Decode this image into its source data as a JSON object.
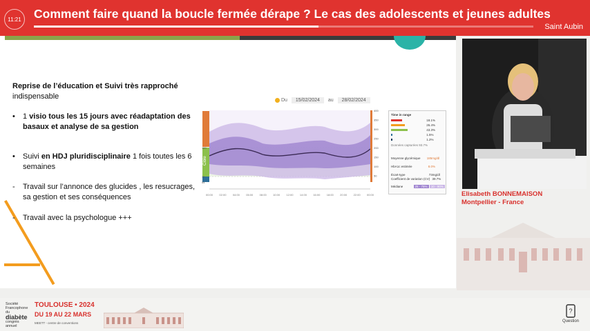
{
  "header": {
    "time": "11:21",
    "title": "Comment faire quand la boucle fermée dérape ? Le cas des adolescents et jeunes adultes",
    "location": "Saint Aubin",
    "progress_fraction": 0.57
  },
  "slide": {
    "heading_bold": "Reprise de l’éducation et Suivi très rapproché",
    "heading_rest": "indispensable",
    "bullet1_a": "1 ",
    "bullet1_bold": "visio tous les 15 jours avec réadaptation des basaux  et  analyse de sa gestion",
    "bullet2_a": "Suivi ",
    "bullet2_bold": "en HDJ pluridisciplinaire",
    "bullet2_rest": "  1 fois toutes les 6 semaines",
    "dash1": "Travail sur l’annonce des glucides , les resucrages, sa gestion et ses conséquences",
    "dash2": "Travail avec la psychologue +++",
    "chart": {
      "from_label": "Du",
      "from_date": "15/02/2024",
      "to_label": "au",
      "to_date": "28/02/2024",
      "target_label": "Cible",
      "left_ticks": [
        "180",
        "70",
        "54"
      ],
      "right_ticks": [
        "400",
        "350",
        "300",
        "250",
        "200",
        "150",
        "100",
        "50"
      ],
      "x_ticks": [
        "00:00",
        "02:00",
        "04:00",
        "06:00",
        "08:00",
        "10:00",
        "12:00",
        "14:00",
        "16:00",
        "18:00",
        "20:00",
        "22:00",
        "00:00"
      ],
      "stats": {
        "title": "Time in range",
        "pct": [
          "18.1%",
          "26.4%",
          "43.3%",
          "1.5%",
          "1.2%"
        ],
        "capture_label": "Données capturées",
        "capture_value": "93.7%",
        "mean_label": "Moyenne glycémique",
        "mean_value": "185mg/dl",
        "hba1c_label": "HbA1c estimée",
        "hba1c_value": "8.0%",
        "sd_label": "Écart-type",
        "sd_value": "73mg/dl",
        "cv_label": "Coefficient de variation (CV)",
        "cv_value": "39.7%",
        "median_label": "Médiane",
        "band1": "25 - 75%",
        "band2": "10 - 90%"
      }
    }
  },
  "speaker": {
    "name": "Elisabeth BONNEMAISON",
    "place": "Montpellier - France"
  },
  "footer": {
    "org_line1": "Société",
    "org_line2": "Francophone",
    "org_line3": "du",
    "org_line4": "diabète",
    "org_line5": "congrès",
    "org_line6": "annuel",
    "city": "TOULOUSE • 2024",
    "dates": "DU 19 AU 22 MARS",
    "venue": "MEETT - centre de conventions",
    "question_label": "Question"
  },
  "colors": {
    "accent": "#e0332f",
    "band_outer": "#c9b6e6",
    "band_inner": "#9f84d0",
    "median": "#3b2a55",
    "target": "#8cc04b",
    "orange": "#f39c1e"
  }
}
